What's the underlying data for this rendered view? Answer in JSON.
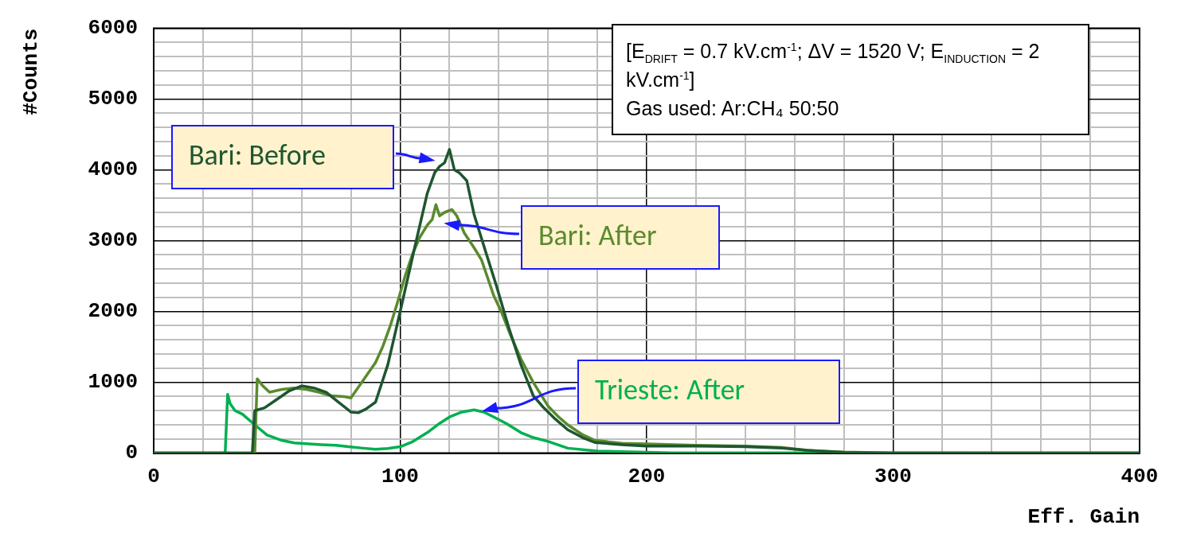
{
  "chart_data": {
    "type": "line",
    "xlabel": "Eff. Gain",
    "ylabel": "#Counts",
    "xlim": [
      0,
      400
    ],
    "xticks": [
      0,
      {
        "value": 20,
        "label": null
      },
      {
        "value": 40,
        "label": null
      },
      {
        "value": 60,
        "label": null
      },
      {
        "value": 80,
        "label": null
      },
      100,
      {
        "value": 120,
        "label": null
      },
      {
        "value": 140,
        "label": null
      },
      {
        "value": 160,
        "label": null
      },
      {
        "value": 180,
        "label": null
      },
      200,
      {
        "value": 220,
        "label": null
      },
      {
        "value": 240,
        "label": null
      },
      {
        "value": 260,
        "label": null
      },
      {
        "value": 280,
        "label": null
      },
      300,
      {
        "value": 320,
        "label": null
      },
      {
        "value": 340,
        "label": null
      },
      {
        "value": 360,
        "label": null
      },
      {
        "value": 380,
        "label": null
      },
      400
    ],
    "ylim": [
      0,
      6000
    ],
    "yticks": [
      0,
      {
        "value": 200,
        "label": null
      },
      {
        "value": 400,
        "label": null
      },
      {
        "value": 600,
        "label": null
      },
      {
        "value": 800,
        "label": null
      },
      1000,
      {
        "value": 1200,
        "label": null
      },
      {
        "value": 1400,
        "label": null
      },
      {
        "value": 1600,
        "label": null
      },
      {
        "value": 1800,
        "label": null
      },
      2000,
      {
        "value": 2200,
        "label": null
      },
      {
        "value": 2400,
        "label": null
      },
      {
        "value": 2600,
        "label": null
      },
      {
        "value": 2800,
        "label": null
      },
      3000,
      {
        "value": 3200,
        "label": null
      },
      {
        "value": 3400,
        "label": null
      },
      {
        "value": 3600,
        "label": null
      },
      {
        "value": 3800,
        "label": null
      },
      4000,
      {
        "value": 4200,
        "label": null
      },
      {
        "value": 4400,
        "label": null
      },
      {
        "value": 4600,
        "label": null
      },
      {
        "value": 4800,
        "label": null
      },
      5000,
      {
        "value": 5200,
        "label": null
      },
      {
        "value": 5400,
        "label": null
      },
      {
        "value": 5600,
        "label": null
      },
      {
        "value": 5800,
        "label": null
      },
      6000
    ],
    "grid": true,
    "legend": false,
    "marker": "none",
    "line_style": "solid",
    "annotations": [
      "[E$_{DRIFT}$ = 0.7 kV.cm$^{-1}$; ΔV = 1520 V; E$_{INDUCTION}$ = 2 kV.cm$^{-1}$]",
      "Gas used: Ar:CH₄ 50:50"
    ],
    "series": [
      {
        "name": "Bari: Before",
        "color": "#1e5631",
        "x": [
          0,
          40,
          41,
          45,
          50,
          55,
          60,
          65,
          70,
          75,
          80,
          83,
          86,
          90,
          95,
          100,
          106,
          111,
          114,
          116,
          118,
          120,
          122,
          124,
          127,
          130,
          135,
          139,
          144,
          149,
          154,
          158,
          163,
          168,
          174,
          179,
          190,
          200,
          220,
          240,
          255,
          265,
          280,
          300,
          400
        ],
        "values": [
          0,
          0,
          600,
          640,
          760,
          880,
          950,
          920,
          860,
          720,
          580,
          570,
          620,
          720,
          1250,
          2000,
          2920,
          3670,
          3960,
          4050,
          4100,
          4290,
          4000,
          3960,
          3850,
          3370,
          2810,
          2370,
          1780,
          1250,
          810,
          650,
          480,
          330,
          220,
          150,
          120,
          100,
          100,
          90,
          70,
          40,
          10,
          0,
          0
        ]
      },
      {
        "name": "Bari: After",
        "color": "#5b8a2e",
        "x": [
          0,
          41,
          42,
          44,
          47,
          52,
          57,
          62,
          67,
          72,
          77,
          80,
          85,
          90,
          93,
          96,
          99,
          102,
          105,
          108,
          111,
          113,
          114.5,
          116,
          118,
          121,
          123,
          126,
          130,
          133,
          138,
          141,
          145,
          149,
          154,
          160,
          164,
          168,
          174,
          179,
          190,
          200,
          220,
          240,
          255,
          265,
          280,
          300,
          400
        ],
        "values": [
          0,
          0,
          1050,
          960,
          860,
          900,
          920,
          900,
          860,
          810,
          800,
          780,
          1030,
          1280,
          1510,
          1800,
          2140,
          2500,
          2810,
          3050,
          3220,
          3300,
          3510,
          3350,
          3400,
          3440,
          3350,
          3110,
          2900,
          2730,
          2220,
          2000,
          1650,
          1330,
          1000,
          665,
          520,
          400,
          260,
          180,
          140,
          130,
          110,
          100,
          80,
          40,
          15,
          0,
          0
        ]
      },
      {
        "name": "Trieste: After",
        "color": "#00b050",
        "x": [
          0,
          29,
          30,
          31,
          33,
          36,
          41,
          46,
          52,
          57,
          63,
          68,
          74,
          79,
          85,
          90,
          95,
          100,
          105,
          111,
          116,
          120,
          125,
          130,
          134,
          138,
          143,
          149,
          154,
          160,
          168,
          180,
          190,
          210,
          400
        ],
        "values": [
          0,
          0,
          830,
          700,
          600,
          550,
          400,
          255,
          180,
          145,
          130,
          120,
          110,
          90,
          70,
          55,
          65,
          90,
          160,
          290,
          420,
          510,
          580,
          610,
          580,
          510,
          420,
          290,
          220,
          165,
          70,
          30,
          20,
          5,
          0
        ]
      }
    ]
  }
}
